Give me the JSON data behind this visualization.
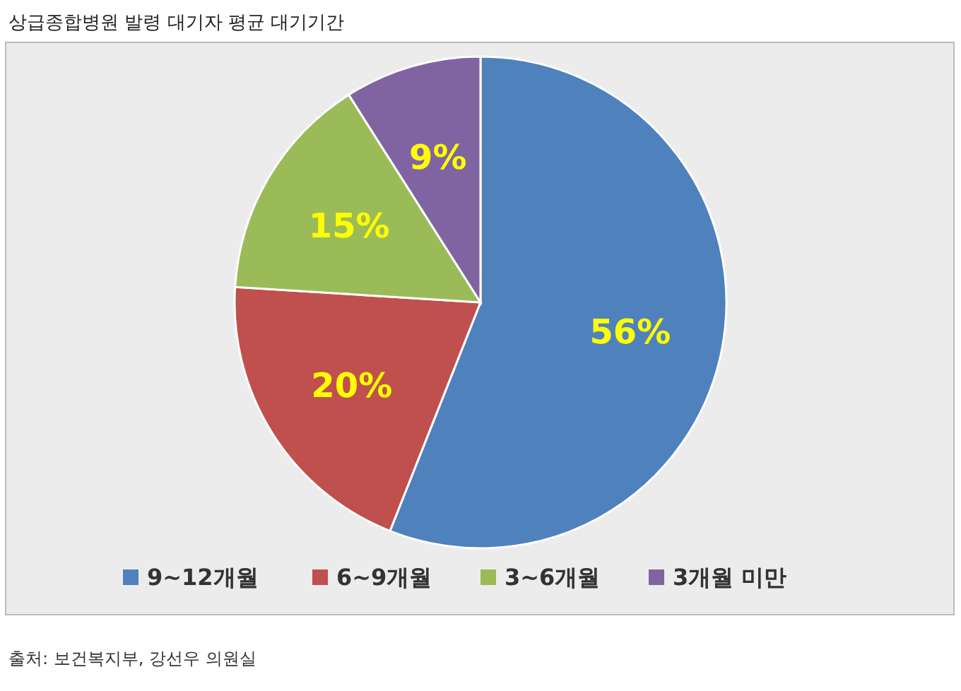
{
  "chart_data": {
    "type": "pie",
    "title": "상급종합병원 발령 대기자 평균 대기기간",
    "categories": [
      "9~12개월",
      "6~9개월",
      "3~6개월",
      "3개월 미만"
    ],
    "values": [
      56,
      20,
      15,
      9
    ],
    "colors": [
      "#4f81bd",
      "#c0504d",
      "#9bbb59",
      "#8064a2"
    ],
    "value_labels": [
      "56%",
      "20%",
      "15%",
      "9%"
    ],
    "legend": "bottom",
    "annotations": [
      "출처: 보건복지부, 강선우 의원실"
    ]
  }
}
